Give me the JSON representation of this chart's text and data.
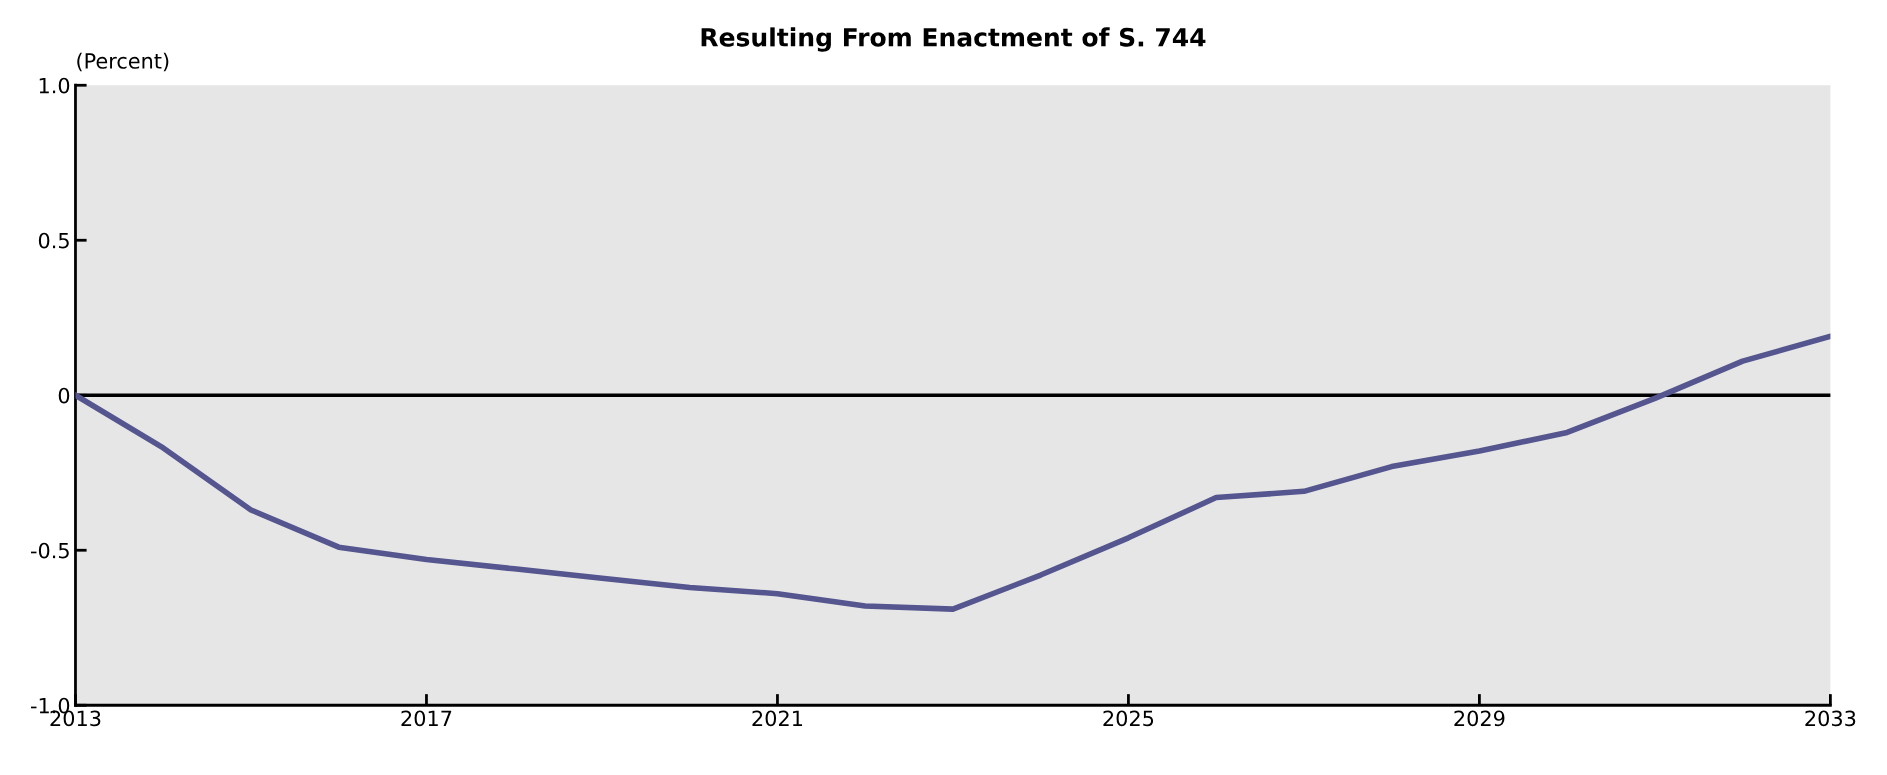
{
  "chart_data": {
    "type": "line",
    "title": "Resulting From Enactment of S. 744",
    "ylabel": "(Percent)",
    "x": [
      2013,
      2014,
      2015,
      2016,
      2017,
      2018,
      2019,
      2020,
      2021,
      2022,
      2023,
      2024,
      2025,
      2026,
      2027,
      2028,
      2029,
      2030,
      2031,
      2032,
      2033
    ],
    "series": [
      {
        "color": "#55558f",
        "values": [
          0,
          -0.17,
          -0.37,
          -0.49,
          -0.53,
          -0.56,
          -0.59,
          -0.62,
          -0.64,
          -0.68,
          -0.69,
          -0.58,
          -0.46,
          -0.33,
          -0.31,
          -0.23,
          -0.18,
          -0.12,
          -0.01,
          0.11,
          0.19
        ]
      }
    ],
    "xlim": [
      2013,
      2033
    ],
    "xticks": [
      2013,
      2017,
      2021,
      2025,
      2029,
      2033
    ],
    "ylim": [
      -1,
      1
    ],
    "yticks": [
      {
        "value": -1,
        "label": "-1.0"
      },
      {
        "value": -0.5,
        "label": "-0.5"
      },
      0,
      {
        "value": 0.5,
        "label": "0.5"
      },
      {
        "value": 1,
        "label": "1.0"
      }
    ],
    "ref_lines": [
      {
        "axis": "y",
        "value": 0,
        "color": "#000000"
      }
    ],
    "grid": false,
    "legend": false,
    "marker": "none",
    "line_style": "solid"
  }
}
